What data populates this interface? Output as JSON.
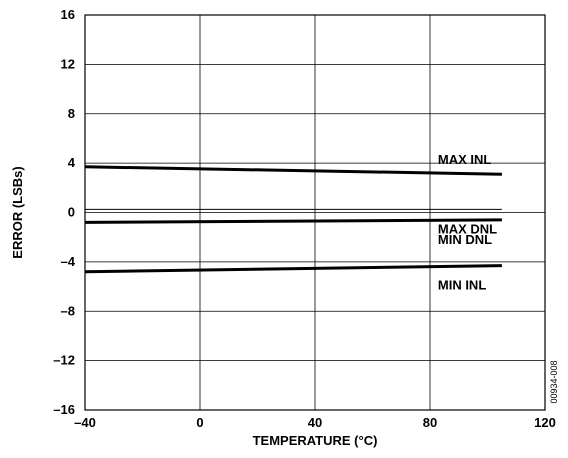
{
  "chart_data": {
    "type": "line",
    "title": "",
    "xlabel": "TEMPERATURE (°C)",
    "ylabel": "ERROR (LSBs)",
    "xlim": [
      -40,
      120
    ],
    "ylim": [
      -16,
      16
    ],
    "x_ticks": [
      -40,
      0,
      40,
      80,
      120
    ],
    "y_ticks": [
      16,
      12,
      8,
      4,
      0,
      -4,
      -8,
      -12,
      -16
    ],
    "x_tick_labels": [
      "–40",
      "0",
      "40",
      "80",
      "120"
    ],
    "y_tick_labels": [
      "16",
      "12",
      "8",
      "4",
      "0",
      "–4",
      "–8",
      "–12",
      "–16"
    ],
    "grid": true,
    "legend": "none",
    "series": [
      {
        "name": "MAX INL",
        "x": [
          -40,
          105
        ],
        "y": [
          3.7,
          3.1
        ],
        "style": "thick",
        "color": "#000000"
      },
      {
        "name": "MAX DNL",
        "x": [
          -40,
          105
        ],
        "y": [
          0.25,
          0.25
        ],
        "style": "thin",
        "color": "#000000"
      },
      {
        "name": "MIN DNL",
        "x": [
          -40,
          105
        ],
        "y": [
          -0.8,
          -0.6
        ],
        "style": "thick",
        "color": "#000000"
      },
      {
        "name": "MIN INL",
        "x": [
          -40,
          105
        ],
        "y": [
          -4.8,
          -4.3
        ],
        "style": "thick",
        "color": "#000000"
      }
    ],
    "figure_id": "00934-008"
  }
}
